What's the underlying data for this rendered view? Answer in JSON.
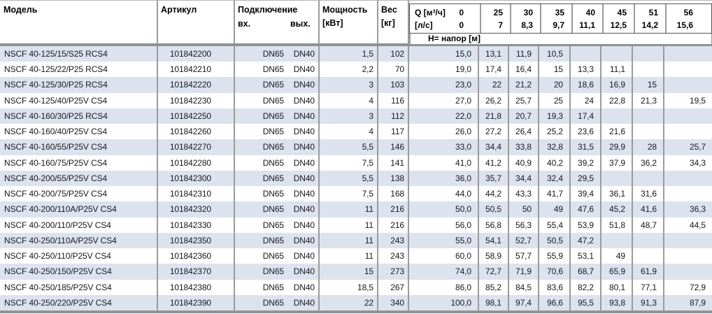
{
  "table": {
    "headers": {
      "model": "Модель",
      "article": "Артикул",
      "connection": "Подключение",
      "connection_in": "вх.",
      "connection_out": "вых.",
      "power_line1": "Мощность",
      "power_line2": "[кВт]",
      "weight_line1": "Вес",
      "weight_line2": "[кг]",
      "q_unit1": "Q [м³/ч]",
      "q_zero1": "0",
      "q_unit2": "[л/с]",
      "q_zero2": "0",
      "flow_m3h": [
        "25",
        "30",
        "35",
        "40",
        "45",
        "51",
        "56"
      ],
      "flow_ls": [
        "7",
        "8,3",
        "9,7",
        "11,1",
        "12,5",
        "14,2",
        "15,6"
      ],
      "head_label": "Н= напор [м]"
    },
    "rows": [
      {
        "model": "NSCF 40-125/15/S25 RCS4",
        "article": "101842200",
        "conn_in": "DN65",
        "conn_out": "DN40",
        "power": "1,5",
        "weight": "102",
        "head": [
          "15,0",
          "13,1",
          "11,9",
          "10,5",
          "",
          "",
          "",
          ""
        ]
      },
      {
        "model": "NSCF 40-125/22/P25 RCS4",
        "article": "101842210",
        "conn_in": "DN65",
        "conn_out": "DN40",
        "power": "2,2",
        "weight": "70",
        "head": [
          "19,0",
          "17,4",
          "16,4",
          "15",
          "13,3",
          "11,1",
          "",
          ""
        ]
      },
      {
        "model": "NSCF 40-125/30/P25 RCS4",
        "article": "101842220",
        "conn_in": "DN65",
        "conn_out": "DN40",
        "power": "3",
        "weight": "103",
        "head": [
          "23,0",
          "22",
          "21,2",
          "20",
          "18,6",
          "16,9",
          "15",
          ""
        ]
      },
      {
        "model": "NSCF 40-125/40/P25V CS4",
        "article": "101842230",
        "conn_in": "DN65",
        "conn_out": "DN40",
        "power": "4",
        "weight": "116",
        "head": [
          "27,0",
          "26,2",
          "25,7",
          "25",
          "24",
          "22,8",
          "21,3",
          "19,5"
        ]
      },
      {
        "model": "NSCF 40-160/30/P25 RCS4",
        "article": "101842250",
        "conn_in": "DN65",
        "conn_out": "DN40",
        "power": "3",
        "weight": "112",
        "head": [
          "22,0",
          "21,8",
          "20,7",
          "19,3",
          "17,4",
          "",
          "",
          ""
        ]
      },
      {
        "model": "NSCF 40-160/40/P25V CS4",
        "article": "101842260",
        "conn_in": "DN65",
        "conn_out": "DN40",
        "power": "4",
        "weight": "117",
        "head": [
          "26,0",
          "27,2",
          "26,4",
          "25,2",
          "23,6",
          "21,6",
          "",
          ""
        ]
      },
      {
        "model": "NSCF 40-160/55/P25V CS4",
        "article": "101842270",
        "conn_in": "DN65",
        "conn_out": "DN40",
        "power": "5,5",
        "weight": "146",
        "head": [
          "33,0",
          "34,4",
          "33,8",
          "32,8",
          "31,5",
          "29,9",
          "28",
          "25,7"
        ]
      },
      {
        "model": "NSCF 40-160/75/P25V CS4",
        "article": "101842280",
        "conn_in": "DN65",
        "conn_out": "DN40",
        "power": "7,5",
        "weight": "141",
        "head": [
          "41,0",
          "41,2",
          "40,9",
          "40,2",
          "39,2",
          "37,9",
          "36,2",
          "34,3"
        ]
      },
      {
        "model": "NSCF 40-200/55/P25V CS4",
        "article": "101842300",
        "conn_in": "DN65",
        "conn_out": "DN40",
        "power": "5,5",
        "weight": "138",
        "head": [
          "36,0",
          "35,7",
          "34,4",
          "32,4",
          "29,5",
          "",
          "",
          ""
        ]
      },
      {
        "model": "NSCF 40-200/75/P25V CS4",
        "article": "101842310",
        "conn_in": "DN65",
        "conn_out": "DN40",
        "power": "7,5",
        "weight": "168",
        "head": [
          "44,0",
          "44,2",
          "43,3",
          "41,7",
          "39,4",
          "36,1",
          "31,6",
          ""
        ]
      },
      {
        "model": "NSCF 40-200/110A/P25V CS4",
        "article": "101842320",
        "conn_in": "DN65",
        "conn_out": "DN40",
        "power": "11",
        "weight": "216",
        "head": [
          "50,0",
          "50,5",
          "50",
          "49",
          "47,6",
          "45,2",
          "41,6",
          "36,3"
        ]
      },
      {
        "model": "NSCF 40-200/110/P25V CS4",
        "article": "101842330",
        "conn_in": "DN65",
        "conn_out": "DN40",
        "power": "11",
        "weight": "216",
        "head": [
          "56,0",
          "56,8",
          "56,3",
          "55,4",
          "53,9",
          "51,8",
          "48,7",
          "44,5"
        ]
      },
      {
        "model": "NSCF 40-250/110A/P25V CS4",
        "article": "101842350",
        "conn_in": "DN65",
        "conn_out": "DN40",
        "power": "11",
        "weight": "243",
        "head": [
          "55,0",
          "54,1",
          "52,7",
          "50,5",
          "47,2",
          "",
          "",
          ""
        ]
      },
      {
        "model": "NSCF 40-250/110/P25V CS4",
        "article": "101842360",
        "conn_in": "DN65",
        "conn_out": "DN40",
        "power": "11",
        "weight": "243",
        "head": [
          "60,0",
          "58,9",
          "57,7",
          "55,9",
          "53,1",
          "49",
          "",
          ""
        ]
      },
      {
        "model": "NSCF 40-250/150/P25V CS4",
        "article": "101842370",
        "conn_in": "DN65",
        "conn_out": "DN40",
        "power": "15",
        "weight": "273",
        "head": [
          "74,0",
          "72,7",
          "71,9",
          "70,6",
          "68,7",
          "65,9",
          "61,9",
          ""
        ]
      },
      {
        "model": "NSCF 40-250/185/P25V CS4",
        "article": "101842380",
        "conn_in": "DN65",
        "conn_out": "DN40",
        "power": "18,5",
        "weight": "267",
        "head": [
          "86,0",
          "85,2",
          "84,5",
          "83,6",
          "82,2",
          "80,1",
          "77,1",
          "72,9"
        ]
      },
      {
        "model": "NSCF 40-250/220/P25V CS4",
        "article": "101842390",
        "conn_in": "DN65",
        "conn_out": "DN40",
        "power": "22",
        "weight": "340",
        "head": [
          "100,0",
          "98,1",
          "97,4",
          "96,6",
          "95,5",
          "93,8",
          "91,3",
          "87,9"
        ]
      }
    ]
  },
  "colors": {
    "row_stripe": "#dce3ee",
    "separator": "#9b9b9b",
    "thick_bar": "#919191",
    "text": "#17171d"
  }
}
